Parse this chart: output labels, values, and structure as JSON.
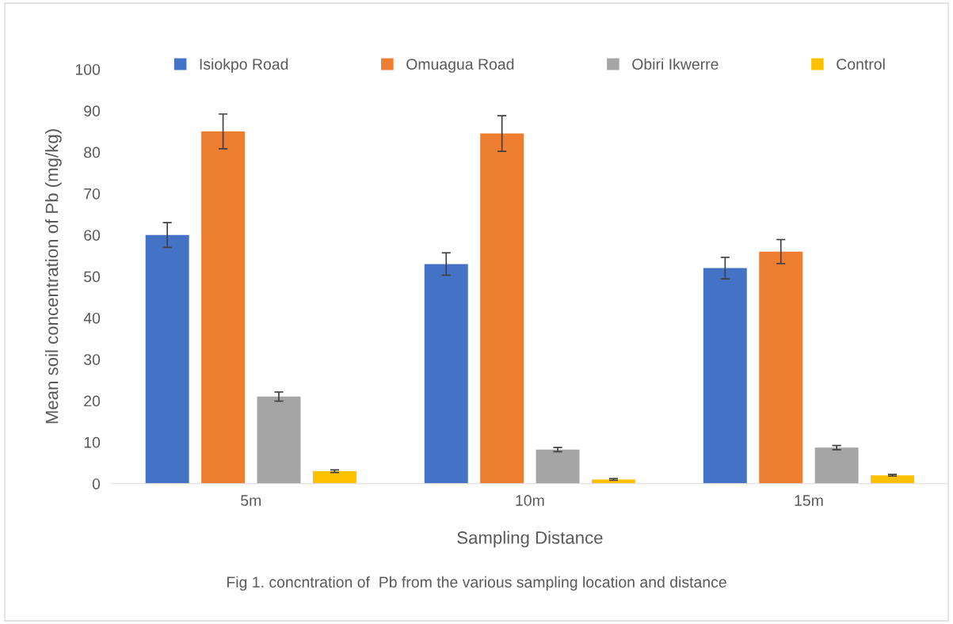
{
  "chart_data": {
    "type": "bar",
    "xlabel": "Sampling Distance",
    "ylabel": "Mean soil concentration of Pb (mg/kg)",
    "categories": [
      "5m",
      "10m",
      "15m"
    ],
    "series": [
      {
        "name": "Isiokpo Road",
        "color": "#4472c4",
        "values": [
          60,
          53,
          52
        ],
        "errors": [
          3,
          2.7,
          2.6
        ]
      },
      {
        "name": "Omuagua Road",
        "color": "#ed7d31",
        "values": [
          85,
          84.5,
          56
        ],
        "errors": [
          4.2,
          4.3,
          2.9
        ]
      },
      {
        "name": "Obiri Ikwerre",
        "color": "#a5a5a5",
        "values": [
          21,
          8.2,
          8.7
        ],
        "errors": [
          1.1,
          0.5,
          0.5
        ]
      },
      {
        "name": "Control",
        "color": "#ffc000",
        "values": [
          3,
          1,
          2
        ],
        "errors": [
          0.3,
          0.2,
          0.2
        ]
      }
    ],
    "ylim": [
      0,
      100
    ],
    "yticks": [
      0,
      10,
      20,
      30,
      40,
      50,
      60,
      70,
      80,
      90,
      100
    ],
    "grid": false,
    "legend": "top",
    "annotations": [
      "Fig 1. concntration of  Pb from the various sampling location and distance"
    ]
  }
}
